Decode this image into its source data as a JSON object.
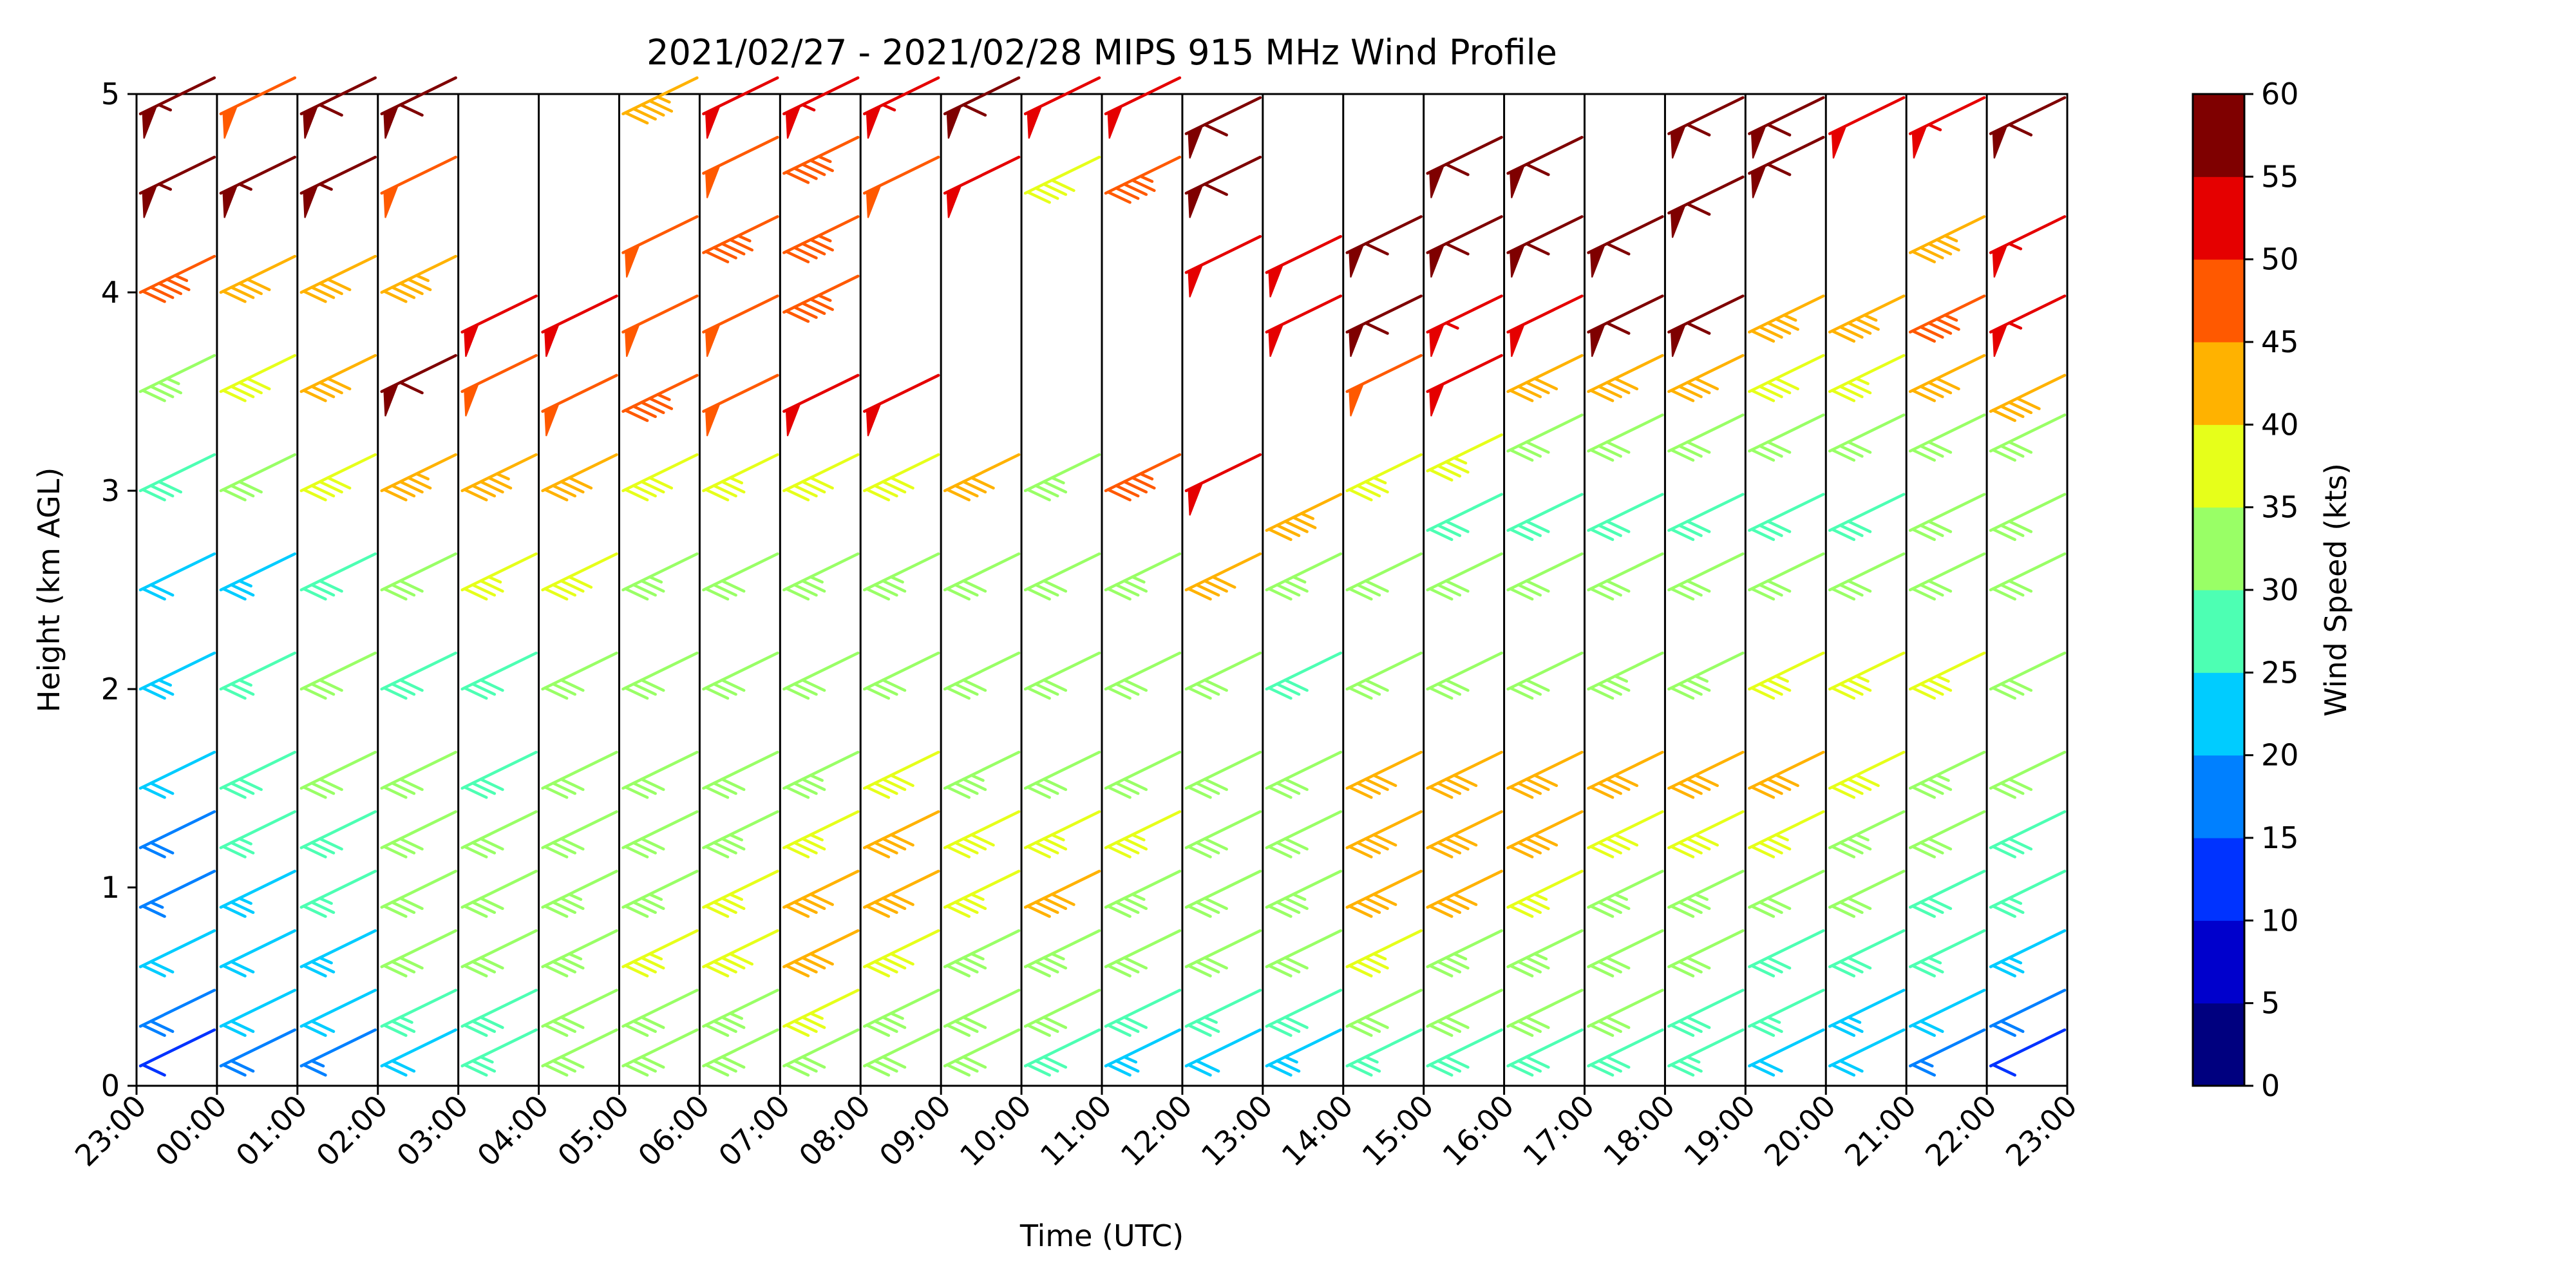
{
  "chart_data": {
    "type": "wind_barb_profile",
    "title": "2021/02/27 - 2021/02/28 MIPS 915 MHz Wind Profile",
    "xlabel": "Time (UTC)",
    "ylabel": "Height (km AGL)",
    "ylim": [
      0,
      5
    ],
    "yticks": [
      "0",
      "1",
      "2",
      "3",
      "4",
      "5"
    ],
    "xticks": [
      "23:00",
      "00:00",
      "01:00",
      "02:00",
      "03:00",
      "04:00",
      "05:00",
      "06:00",
      "07:00",
      "08:00",
      "09:00",
      "10:00",
      "11:00",
      "12:00",
      "13:00",
      "14:00",
      "15:00",
      "16:00",
      "17:00",
      "18:00",
      "19:00",
      "20:00",
      "21:00",
      "22:00",
      "23:00"
    ],
    "colorbar": {
      "label": "Wind Speed (kts)",
      "ticks": [
        "0",
        "5",
        "10",
        "15",
        "20",
        "25",
        "30",
        "35",
        "40",
        "45",
        "50",
        "55",
        "60"
      ],
      "colors": [
        "#00007f",
        "#0000cc",
        "#0033ff",
        "#0080ff",
        "#00ccff",
        "#4dffb3",
        "#99ff66",
        "#e6ff1a",
        "#ffb200",
        "#ff5900",
        "#e50000",
        "#7f0000"
      ]
    },
    "grid": false,
    "profiles": [
      {
        "time": "23:00",
        "heights": [
          0.1,
          0.3,
          0.6,
          0.9,
          1.2,
          1.5,
          2.0,
          2.5,
          3.0,
          3.5,
          4.0,
          4.5,
          4.9
        ],
        "speeds": [
          12,
          18,
          22,
          15,
          18,
          22,
          24,
          22,
          28,
          33,
          45,
          55,
          55
        ]
      },
      {
        "time": "00:00",
        "heights": [
          0.1,
          0.3,
          0.6,
          0.9,
          1.2,
          1.5,
          2.0,
          2.5,
          3.0,
          3.5,
          4.0,
          4.5,
          4.9
        ],
        "speeds": [
          18,
          22,
          20,
          24,
          26,
          28,
          25,
          24,
          30,
          38,
          42,
          55,
          48
        ]
      },
      {
        "time": "01:00",
        "heights": [
          0.1,
          0.3,
          0.6,
          0.9,
          1.2,
          1.5,
          2.0,
          2.5,
          3.0,
          3.5,
          4.0,
          4.5,
          4.9
        ],
        "speeds": [
          15,
          20,
          24,
          26,
          28,
          30,
          30,
          28,
          38,
          40,
          42,
          55,
          58
        ]
      },
      {
        "time": "02:00",
        "heights": [
          0.1,
          0.3,
          0.6,
          0.9,
          1.2,
          1.5,
          2.0,
          2.5,
          3.0,
          3.5,
          4.0,
          4.5,
          4.9
        ],
        "speeds": [
          22,
          26,
          30,
          32,
          32,
          30,
          28,
          30,
          44,
          58,
          44,
          48,
          58
        ]
      },
      {
        "time": "03:00",
        "heights": [
          0.1,
          0.3,
          0.6,
          0.9,
          1.2,
          1.5,
          2.0,
          2.5,
          3.0,
          3.5,
          3.8
        ],
        "speeds": [
          26,
          28,
          30,
          32,
          30,
          28,
          28,
          36,
          44,
          48,
          52
        ]
      },
      {
        "time": "04:00",
        "heights": [
          0.1,
          0.3,
          0.6,
          0.9,
          1.2,
          1.5,
          2.0,
          2.5,
          3.0,
          3.4,
          3.8
        ],
        "speeds": [
          30,
          32,
          34,
          34,
          30,
          30,
          32,
          38,
          42,
          48,
          52
        ]
      },
      {
        "time": "05:00",
        "heights": [
          0.1,
          0.3,
          0.6,
          0.9,
          1.2,
          1.5,
          2.0,
          2.5,
          3.0,
          3.4,
          3.8,
          4.2,
          4.9
        ],
        "speeds": [
          30,
          32,
          36,
          34,
          32,
          32,
          30,
          34,
          38,
          46,
          48,
          48,
          44
        ]
      },
      {
        "time": "06:00",
        "heights": [
          0.1,
          0.3,
          0.6,
          0.9,
          1.2,
          1.5,
          2.0,
          2.5,
          3.0,
          3.4,
          3.8,
          4.2,
          4.6,
          4.9
        ],
        "speeds": [
          30,
          34,
          38,
          36,
          34,
          32,
          30,
          32,
          36,
          48,
          48,
          46,
          48,
          50
        ]
      },
      {
        "time": "07:00",
        "heights": [
          0.1,
          0.3,
          0.6,
          0.9,
          1.2,
          1.5,
          2.0,
          2.5,
          3.0,
          3.4,
          3.9,
          4.2,
          4.6,
          4.9
        ],
        "speeds": [
          32,
          36,
          42,
          40,
          36,
          34,
          30,
          34,
          38,
          52,
          46,
          46,
          46,
          54
        ]
      },
      {
        "time": "08:00",
        "heights": [
          0.1,
          0.3,
          0.6,
          0.9,
          1.2,
          1.5,
          2.0,
          2.5,
          3.0,
          3.4,
          4.5,
          4.9
        ],
        "speeds": [
          32,
          34,
          38,
          42,
          40,
          38,
          32,
          34,
          38,
          52,
          48,
          54
        ]
      },
      {
        "time": "09:00",
        "heights": [
          0.1,
          0.3,
          0.6,
          0.9,
          1.2,
          1.5,
          2.0,
          2.5,
          3.0,
          4.5,
          4.9
        ],
        "speeds": [
          30,
          32,
          34,
          36,
          38,
          34,
          30,
          32,
          42,
          52,
          58
        ]
      },
      {
        "time": "10:00",
        "heights": [
          0.1,
          0.3,
          0.6,
          0.9,
          1.2,
          1.5,
          2.0,
          2.5,
          3.0,
          4.5,
          4.9
        ],
        "speeds": [
          28,
          30,
          34,
          42,
          36,
          32,
          30,
          32,
          34,
          38,
          52
        ]
      },
      {
        "time": "11:00",
        "heights": [
          0.1,
          0.3,
          0.6,
          0.9,
          1.2,
          1.5,
          2.0,
          2.5,
          3.0,
          4.5,
          4.9
        ],
        "speeds": [
          24,
          28,
          32,
          34,
          36,
          32,
          30,
          34,
          46,
          46,
          52
        ]
      },
      {
        "time": "12:00",
        "heights": [
          0.1,
          0.3,
          0.6,
          0.9,
          1.2,
          1.5,
          2.0,
          2.5,
          3.0,
          4.1,
          4.5,
          4.8
        ],
        "speeds": [
          22,
          26,
          30,
          32,
          32,
          30,
          30,
          40,
          52,
          52,
          58,
          58
        ]
      },
      {
        "time": "13:00",
        "heights": [
          0.1,
          0.3,
          0.6,
          0.9,
          1.2,
          1.5,
          2.0,
          2.5,
          2.8,
          3.8,
          4.1
        ],
        "speeds": [
          24,
          28,
          32,
          34,
          32,
          30,
          28,
          34,
          44,
          52,
          52
        ]
      },
      {
        "time": "14:00",
        "heights": [
          0.1,
          0.3,
          0.6,
          0.9,
          1.2,
          1.5,
          2.0,
          2.5,
          3.0,
          3.5,
          3.8,
          4.2
        ],
        "speeds": [
          26,
          30,
          36,
          40,
          42,
          40,
          32,
          30,
          36,
          48,
          58,
          58
        ]
      },
      {
        "time": "15:00",
        "heights": [
          0.1,
          0.3,
          0.6,
          0.9,
          1.2,
          1.5,
          2.0,
          2.5,
          2.8,
          3.1,
          3.5,
          3.8,
          4.2,
          4.6
        ],
        "speeds": [
          28,
          30,
          34,
          40,
          42,
          42,
          32,
          30,
          28,
          36,
          52,
          54,
          58,
          58
        ]
      },
      {
        "time": "16:00",
        "heights": [
          0.1,
          0.3,
          0.6,
          0.9,
          1.2,
          1.5,
          2.0,
          2.5,
          2.8,
          3.2,
          3.5,
          3.8,
          4.2,
          4.6
        ],
        "speeds": [
          28,
          30,
          34,
          36,
          40,
          40,
          32,
          30,
          28,
          32,
          42,
          52,
          58,
          58
        ]
      },
      {
        "time": "17:00",
        "heights": [
          0.1,
          0.3,
          0.6,
          0.9,
          1.2,
          1.5,
          2.0,
          2.5,
          2.8,
          3.2,
          3.5,
          3.8,
          4.2
        ],
        "speeds": [
          28,
          30,
          32,
          34,
          38,
          42,
          34,
          30,
          28,
          32,
          42,
          58,
          58
        ]
      },
      {
        "time": "18:00",
        "heights": [
          0.1,
          0.3,
          0.6,
          0.9,
          1.2,
          1.5,
          2.0,
          2.5,
          2.8,
          3.2,
          3.5,
          3.8,
          4.4,
          4.8
        ],
        "speeds": [
          26,
          28,
          30,
          34,
          38,
          42,
          34,
          30,
          28,
          30,
          42,
          58,
          58,
          58
        ]
      },
      {
        "time": "19:00",
        "heights": [
          0.1,
          0.3,
          0.6,
          0.9,
          1.2,
          1.5,
          2.0,
          2.5,
          2.8,
          3.2,
          3.5,
          3.8,
          4.6,
          4.8
        ],
        "speeds": [
          22,
          26,
          28,
          32,
          36,
          40,
          36,
          32,
          28,
          30,
          38,
          44,
          58,
          58
        ]
      },
      {
        "time": "20:00",
        "heights": [
          0.1,
          0.3,
          0.6,
          0.9,
          1.2,
          1.5,
          2.0,
          2.5,
          2.8,
          3.2,
          3.5,
          3.8,
          4.8
        ],
        "speeds": [
          20,
          24,
          28,
          30,
          34,
          38,
          36,
          32,
          28,
          30,
          36,
          44,
          52
        ]
      },
      {
        "time": "21:00",
        "heights": [
          0.1,
          0.3,
          0.6,
          0.9,
          1.2,
          1.5,
          2.0,
          2.5,
          2.8,
          3.2,
          3.5,
          3.8,
          4.2,
          4.8
        ],
        "speeds": [
          16,
          22,
          26,
          28,
          32,
          34,
          36,
          32,
          30,
          32,
          40,
          46,
          44,
          54
        ]
      },
      {
        "time": "22:00",
        "heights": [
          0.1,
          0.3,
          0.6,
          0.9,
          1.2,
          1.5,
          2.0,
          2.5,
          2.8,
          3.2,
          3.4,
          3.8,
          4.2,
          4.8
        ],
        "speeds": [
          12,
          18,
          24,
          26,
          28,
          30,
          32,
          30,
          30,
          32,
          42,
          54,
          54,
          58
        ]
      }
    ]
  }
}
